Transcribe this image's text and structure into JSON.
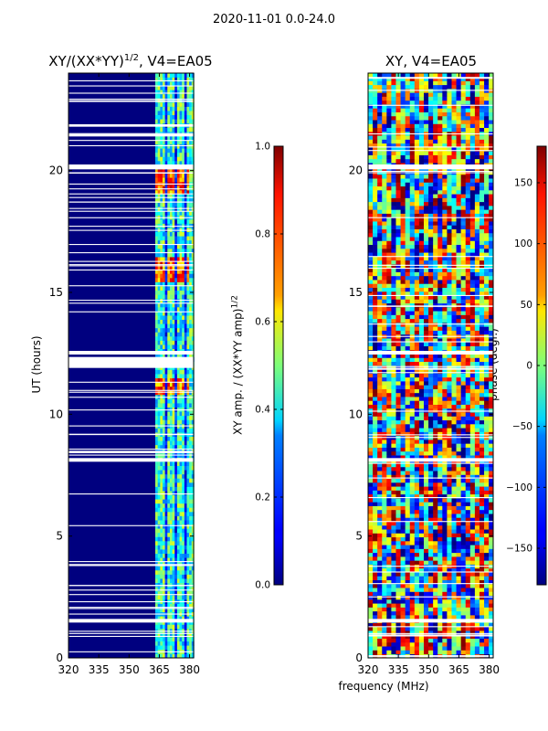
{
  "suptitle": "2020-11-01 0.0-24.0",
  "xlabel_shared": "frequency (MHz)",
  "colors": {
    "axis": "#000000",
    "gap": "#ffffff"
  },
  "chart_data": [
    {
      "type": "heatmap",
      "title_main": "XY/(XX*YY)",
      "title_sup": "1/2",
      "title_tail": ", V4=EA05",
      "ylabel": "UT (hours)",
      "xlim": [
        320,
        382
      ],
      "ylim": [
        0,
        24
      ],
      "xticks": [
        "320",
        "335",
        "350",
        "365",
        "380"
      ],
      "xtick_values": [
        320,
        335,
        350,
        365,
        380
      ],
      "yticks": [
        "0",
        "5",
        "10",
        "15",
        "20"
      ],
      "ytick_values": [
        0,
        5,
        10,
        15,
        20
      ],
      "colormap": "jet",
      "vmin": 0.0,
      "vmax": 1.0,
      "colorbar_label": "XY amp. / (XX*YY amp)",
      "colorbar_label_sup": "1/2",
      "colorbar_ticks": [
        "0.0",
        "0.2",
        "0.4",
        "0.6",
        "0.8",
        "1.0"
      ],
      "colorbar_tick_values": [
        0.0,
        0.2,
        0.4,
        0.6,
        0.8,
        1.0
      ],
      "flagged_ut_bands": [
        [
          1.45,
          1.6
        ],
        [
          8.05,
          8.2
        ],
        [
          8.4,
          8.5
        ],
        [
          11.9,
          12.35
        ],
        [
          12.45,
          12.6
        ],
        [
          20.05,
          20.25
        ],
        [
          21.4,
          21.5
        ],
        [
          21.8,
          21.9
        ]
      ],
      "active_freq_band": [
        363,
        382
      ],
      "high_amp_ut_ranges": [
        [
          15.3,
          16.3
        ],
        [
          19.0,
          20.0
        ],
        [
          10.8,
          11.4
        ]
      ]
    },
    {
      "type": "heatmap",
      "title_main": "XY, V4=EA05",
      "ylabel": "",
      "xlim": [
        320,
        382
      ],
      "ylim": [
        0,
        24
      ],
      "xticks": [
        "320",
        "335",
        "350",
        "365",
        "380"
      ],
      "xtick_values": [
        320,
        335,
        350,
        365,
        380
      ],
      "yticks": [
        "0",
        "5",
        "10",
        "15",
        "20"
      ],
      "ytick_values": [
        0,
        5,
        10,
        15,
        20
      ],
      "colormap": "jet",
      "vmin": -180,
      "vmax": 180,
      "colorbar_label": "phase (degr.)",
      "colorbar_ticks": [
        "−150",
        "−100",
        "−50",
        "0",
        "50",
        "100",
        "150"
      ],
      "colorbar_tick_values": [
        -150,
        -100,
        -50,
        0,
        50,
        100,
        150
      ],
      "flagged_ut_bands": [
        [
          1.45,
          1.6
        ],
        [
          8.05,
          8.2
        ],
        [
          12.45,
          12.6
        ],
        [
          20.05,
          20.25
        ]
      ]
    }
  ]
}
